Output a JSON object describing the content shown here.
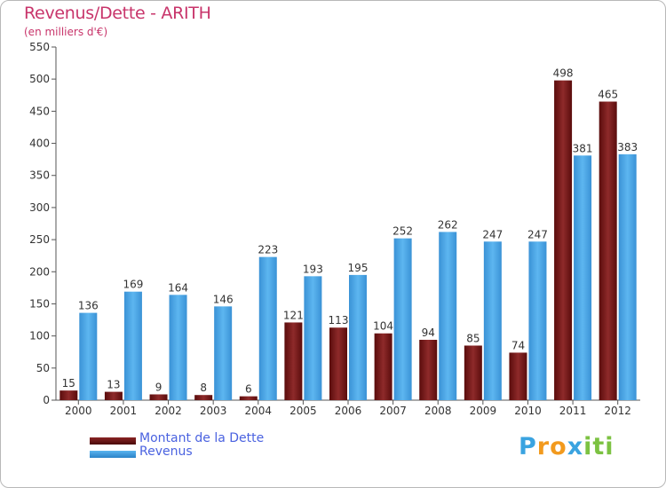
{
  "header": {
    "title": "Revenus/Dette - ARITH",
    "subtitle": "(en milliers d'€)"
  },
  "chart_data": {
    "type": "bar",
    "categories": [
      "2000",
      "2001",
      "2002",
      "2003",
      "2004",
      "2005",
      "2006",
      "2007",
      "2008",
      "2009",
      "2010",
      "2011",
      "2012"
    ],
    "series": [
      {
        "name": "Montant de la Dette",
        "color": "#7a1a1a",
        "values": [
          15,
          13,
          9,
          8,
          6,
          121,
          113,
          104,
          94,
          85,
          74,
          498,
          465
        ]
      },
      {
        "name": "Revenus",
        "color": "#4ea6e6",
        "values": [
          136,
          169,
          164,
          146,
          223,
          193,
          195,
          252,
          262,
          247,
          247,
          381,
          383
        ]
      }
    ],
    "ylim": [
      0,
      550
    ],
    "yticks": [
      0,
      50,
      100,
      150,
      200,
      250,
      300,
      350,
      400,
      450,
      500,
      550
    ],
    "grid": false,
    "legend": "bottom-left"
  },
  "brand": {
    "letters": [
      "P",
      "r",
      "o",
      "x",
      "i",
      "t",
      "i"
    ],
    "colors": [
      "#3aa3e0",
      "#f29a1e",
      "#f29a1e",
      "#3aa3e0",
      "#7cc242",
      "#7cc242",
      "#7cc242"
    ]
  }
}
